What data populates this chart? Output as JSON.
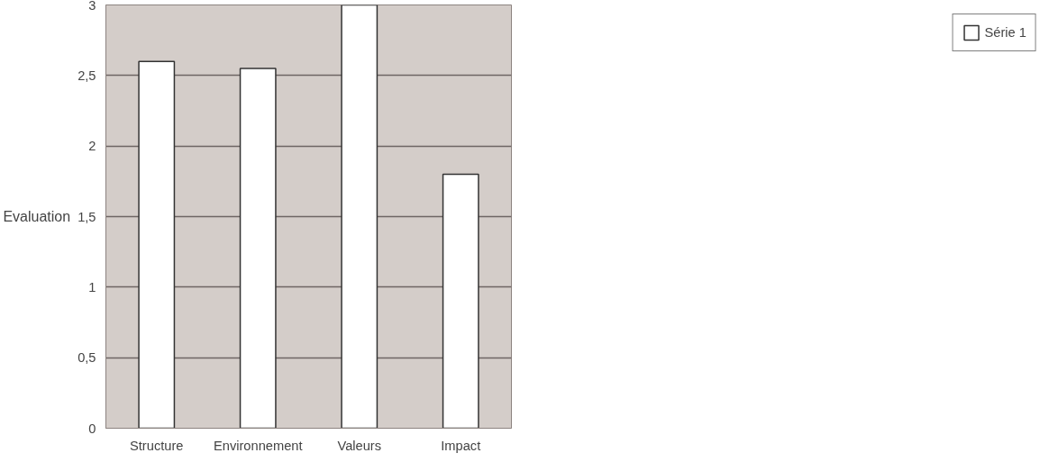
{
  "chart_data": {
    "type": "bar",
    "ylabel": "Evaluation",
    "categories": [
      "Structure",
      "Environnement",
      "Valeurs",
      "Impact"
    ],
    "series": [
      {
        "name": "Série 1",
        "color": "#ffffff",
        "values": [
          2.6,
          2.55,
          3.0,
          1.8
        ]
      }
    ],
    "ylim": [
      0,
      3
    ],
    "yticks": [
      0,
      {
        "value": 0.5,
        "label": "0,5"
      },
      1,
      {
        "value": 1.5,
        "label": "1,5"
      },
      2,
      {
        "value": 2.5,
        "label": "2,5"
      },
      3
    ],
    "grid": "y",
    "legend": "right"
  }
}
